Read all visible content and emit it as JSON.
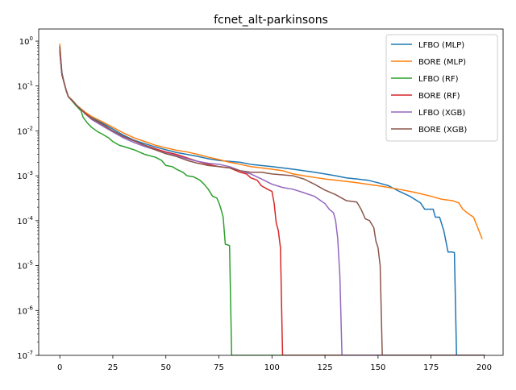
{
  "chart_data": {
    "type": "line",
    "title": "fcnet_alt-parkinsons",
    "xlabel": "",
    "ylabel": "",
    "yscale": "log",
    "xlim": [
      -9.95,
      208.95
    ],
    "ylim_log10": [
      -7,
      0.27
    ],
    "grid": false,
    "legend_position": "upper right",
    "x_ticks": [
      0,
      25,
      50,
      75,
      100,
      125,
      150,
      175,
      200
    ],
    "x_tick_labels": [
      "0",
      "25",
      "50",
      "75",
      "100",
      "125",
      "150",
      "175",
      "200"
    ],
    "y_ticks_log10": [
      0,
      -1,
      -2,
      -3,
      -4,
      -5,
      -6,
      -7
    ],
    "y_tick_labels": [
      "10^0",
      "10^-1",
      "10^-2",
      "10^-3",
      "10^-4",
      "10^-5",
      "10^-6",
      "10^-7"
    ],
    "series": [
      {
        "name": "LFBO (MLP)",
        "color": "#1f77b4",
        "points": [
          [
            0,
            0.7
          ],
          [
            1,
            0.2
          ],
          [
            2,
            0.12
          ],
          [
            3,
            0.08
          ],
          [
            4,
            0.058
          ],
          [
            6,
            0.047
          ],
          [
            8,
            0.036
          ],
          [
            10,
            0.03
          ],
          [
            12,
            0.025
          ],
          [
            15,
            0.02
          ],
          [
            20,
            0.015
          ],
          [
            25,
            0.011
          ],
          [
            30,
            0.008
          ],
          [
            35,
            0.0062
          ],
          [
            40,
            0.0052
          ],
          [
            45,
            0.0044
          ],
          [
            50,
            0.0038
          ],
          [
            55,
            0.0033
          ],
          [
            60,
            0.003
          ],
          [
            65,
            0.0027
          ],
          [
            70,
            0.0024
          ],
          [
            75,
            0.0022
          ],
          [
            80,
            0.0021
          ],
          [
            85,
            0.002
          ],
          [
            90,
            0.0018
          ],
          [
            95,
            0.0017
          ],
          [
            100,
            0.0016
          ],
          [
            105,
            0.0015
          ],
          [
            110,
            0.0014
          ],
          [
            115,
            0.0013
          ],
          [
            120,
            0.0012
          ],
          [
            125,
            0.0011
          ],
          [
            130,
            0.001
          ],
          [
            135,
            0.0009
          ],
          [
            140,
            0.00085
          ],
          [
            145,
            0.0008
          ],
          [
            150,
            0.0007
          ],
          [
            155,
            0.0006
          ],
          [
            160,
            0.00045
          ],
          [
            165,
            0.00035
          ],
          [
            170,
            0.00025
          ],
          [
            172,
            0.00018
          ],
          [
            176,
            0.00018
          ],
          [
            177,
            0.00012
          ],
          [
            179,
            0.00012
          ],
          [
            181,
            6e-05
          ],
          [
            183,
            2e-05
          ],
          [
            185,
            2e-05
          ],
          [
            186,
            1.95e-05
          ],
          [
            187,
            1e-07
          ],
          [
            200,
            1e-07
          ]
        ]
      },
      {
        "name": "BORE (MLP)",
        "color": "#ff7f0e",
        "points": [
          [
            0,
            0.85
          ],
          [
            1,
            0.18
          ],
          [
            2,
            0.12
          ],
          [
            3,
            0.08
          ],
          [
            4,
            0.058
          ],
          [
            6,
            0.048
          ],
          [
            8,
            0.037
          ],
          [
            10,
            0.031
          ],
          [
            12,
            0.026
          ],
          [
            15,
            0.021
          ],
          [
            20,
            0.016
          ],
          [
            25,
            0.012
          ],
          [
            30,
            0.009
          ],
          [
            35,
            0.007
          ],
          [
            40,
            0.0058
          ],
          [
            45,
            0.0048
          ],
          [
            50,
            0.0042
          ],
          [
            55,
            0.0037
          ],
          [
            60,
            0.0034
          ],
          [
            65,
            0.003
          ],
          [
            70,
            0.0026
          ],
          [
            75,
            0.0023
          ],
          [
            80,
            0.002
          ],
          [
            85,
            0.0018
          ],
          [
            90,
            0.0016
          ],
          [
            95,
            0.0015
          ],
          [
            100,
            0.0014
          ],
          [
            105,
            0.0013
          ],
          [
            110,
            0.0011
          ],
          [
            115,
            0.001
          ],
          [
            120,
            0.00092
          ],
          [
            125,
            0.00085
          ],
          [
            130,
            0.0008
          ],
          [
            135,
            0.00075
          ],
          [
            140,
            0.0007
          ],
          [
            145,
            0.00065
          ],
          [
            150,
            0.0006
          ],
          [
            155,
            0.00055
          ],
          [
            160,
            0.0005
          ],
          [
            165,
            0.00045
          ],
          [
            170,
            0.0004
          ],
          [
            175,
            0.00035
          ],
          [
            180,
            0.0003
          ],
          [
            185,
            0.00028
          ],
          [
            188,
            0.00025
          ],
          [
            190,
            0.00018
          ],
          [
            192,
            0.00015
          ],
          [
            195,
            0.00012
          ],
          [
            197,
            7e-05
          ],
          [
            199,
            4e-05
          ]
        ]
      },
      {
        "name": "LFBO (RF)",
        "color": "#2ca02c",
        "points": [
          [
            0,
            0.6
          ],
          [
            1,
            0.18
          ],
          [
            2,
            0.12
          ],
          [
            3,
            0.08
          ],
          [
            4,
            0.058
          ],
          [
            6,
            0.045
          ],
          [
            8,
            0.035
          ],
          [
            10,
            0.028
          ],
          [
            11,
            0.02
          ],
          [
            13,
            0.015
          ],
          [
            15,
            0.012
          ],
          [
            18,
            0.0095
          ],
          [
            20,
            0.0085
          ],
          [
            23,
            0.007
          ],
          [
            25,
            0.0058
          ],
          [
            28,
            0.0048
          ],
          [
            30,
            0.0045
          ],
          [
            35,
            0.0038
          ],
          [
            40,
            0.003
          ],
          [
            45,
            0.0026
          ],
          [
            48,
            0.0022
          ],
          [
            50,
            0.0017
          ],
          [
            53,
            0.0016
          ],
          [
            55,
            0.0014
          ],
          [
            58,
            0.0012
          ],
          [
            60,
            0.001
          ],
          [
            63,
            0.00095
          ],
          [
            66,
            0.0008
          ],
          [
            68,
            0.00065
          ],
          [
            70,
            0.0005
          ],
          [
            72,
            0.00035
          ],
          [
            74,
            0.00032
          ],
          [
            75,
            0.00025
          ],
          [
            76,
            0.00018
          ],
          [
            77,
            0.00012
          ],
          [
            78,
            3e-05
          ],
          [
            80,
            2.8e-05
          ],
          [
            81,
            1e-07
          ],
          [
            200,
            1e-07
          ]
        ]
      },
      {
        "name": "BORE (RF)",
        "color": "#d62728",
        "points": [
          [
            0,
            0.6
          ],
          [
            1,
            0.18
          ],
          [
            2,
            0.12
          ],
          [
            3,
            0.08
          ],
          [
            4,
            0.058
          ],
          [
            6,
            0.047
          ],
          [
            8,
            0.037
          ],
          [
            10,
            0.03
          ],
          [
            12,
            0.025
          ],
          [
            15,
            0.019
          ],
          [
            20,
            0.014
          ],
          [
            25,
            0.01
          ],
          [
            30,
            0.0075
          ],
          [
            35,
            0.006
          ],
          [
            40,
            0.0048
          ],
          [
            45,
            0.004
          ],
          [
            50,
            0.0034
          ],
          [
            55,
            0.003
          ],
          [
            60,
            0.0025
          ],
          [
            65,
            0.0021
          ],
          [
            70,
            0.0018
          ],
          [
            75,
            0.0016
          ],
          [
            80,
            0.0015
          ],
          [
            85,
            0.0012
          ],
          [
            88,
            0.0011
          ],
          [
            90,
            0.0009
          ],
          [
            93,
            0.0008
          ],
          [
            95,
            0.0006
          ],
          [
            98,
            0.0005
          ],
          [
            100,
            0.00045
          ],
          [
            101,
            0.00025
          ],
          [
            102,
            9e-05
          ],
          [
            103,
            6e-05
          ],
          [
            104,
            2.5e-05
          ],
          [
            105,
            1e-07
          ],
          [
            200,
            1e-07
          ]
        ]
      },
      {
        "name": "LFBO (XGB)",
        "color": "#9467bd",
        "points": [
          [
            0,
            0.55
          ],
          [
            1,
            0.18
          ],
          [
            2,
            0.12
          ],
          [
            3,
            0.08
          ],
          [
            4,
            0.058
          ],
          [
            6,
            0.047
          ],
          [
            8,
            0.037
          ],
          [
            10,
            0.03
          ],
          [
            12,
            0.024
          ],
          [
            15,
            0.018
          ],
          [
            20,
            0.013
          ],
          [
            25,
            0.0095
          ],
          [
            30,
            0.007
          ],
          [
            35,
            0.0055
          ],
          [
            40,
            0.0045
          ],
          [
            45,
            0.0038
          ],
          [
            50,
            0.0032
          ],
          [
            55,
            0.0028
          ],
          [
            60,
            0.0024
          ],
          [
            65,
            0.0021
          ],
          [
            70,
            0.0019
          ],
          [
            75,
            0.0018
          ],
          [
            80,
            0.0016
          ],
          [
            85,
            0.0013
          ],
          [
            90,
            0.0011
          ],
          [
            95,
            0.00085
          ],
          [
            100,
            0.00065
          ],
          [
            105,
            0.00055
          ],
          [
            110,
            0.0005
          ],
          [
            115,
            0.00042
          ],
          [
            120,
            0.00035
          ],
          [
            123,
            0.00028
          ],
          [
            125,
            0.00024
          ],
          [
            127,
            0.00018
          ],
          [
            129,
            0.00015
          ],
          [
            130,
            0.0001
          ],
          [
            131,
            4e-05
          ],
          [
            132,
            6e-06
          ],
          [
            133,
            1e-07
          ],
          [
            200,
            1e-07
          ]
        ]
      },
      {
        "name": "BORE (XGB)",
        "color": "#8c564b",
        "points": [
          [
            0,
            0.75
          ],
          [
            1,
            0.18
          ],
          [
            2,
            0.12
          ],
          [
            3,
            0.08
          ],
          [
            4,
            0.058
          ],
          [
            6,
            0.047
          ],
          [
            8,
            0.037
          ],
          [
            10,
            0.03
          ],
          [
            12,
            0.024
          ],
          [
            15,
            0.019
          ],
          [
            20,
            0.014
          ],
          [
            25,
            0.01
          ],
          [
            30,
            0.0075
          ],
          [
            35,
            0.006
          ],
          [
            40,
            0.0048
          ],
          [
            45,
            0.0038
          ],
          [
            50,
            0.0031
          ],
          [
            55,
            0.0027
          ],
          [
            60,
            0.0022
          ],
          [
            65,
            0.0019
          ],
          [
            70,
            0.0017
          ],
          [
            75,
            0.0016
          ],
          [
            80,
            0.0015
          ],
          [
            85,
            0.0013
          ],
          [
            90,
            0.0012
          ],
          [
            95,
            0.0012
          ],
          [
            100,
            0.0011
          ],
          [
            105,
            0.00105
          ],
          [
            110,
            0.001
          ],
          [
            115,
            0.00085
          ],
          [
            120,
            0.00065
          ],
          [
            125,
            0.00048
          ],
          [
            130,
            0.00038
          ],
          [
            135,
            0.00028
          ],
          [
            140,
            0.00026
          ],
          [
            142,
            0.00018
          ],
          [
            144,
            0.00011
          ],
          [
            146,
            0.0001
          ],
          [
            148,
            7e-05
          ],
          [
            149,
            3.5e-05
          ],
          [
            150,
            2.5e-05
          ],
          [
            151,
            1e-05
          ],
          [
            152,
            1e-07
          ],
          [
            200,
            1e-07
          ]
        ]
      }
    ]
  }
}
